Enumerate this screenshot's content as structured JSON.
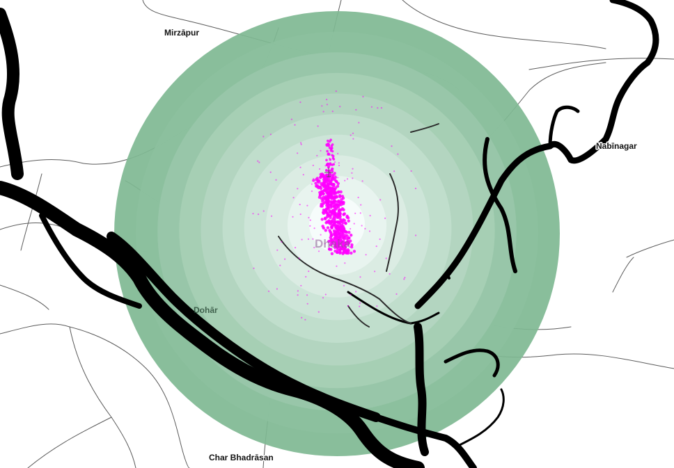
{
  "map": {
    "labels": {
      "mirzapur": "Mirzāpur",
      "nabinagar": "Nabīnagar",
      "dohar": "Dohār",
      "char_bhadrasan": "Char Bhadrāsan",
      "dhaka": "Dhaka"
    },
    "rings": {
      "count": 10,
      "outer_color": "#7fb892",
      "inner_color": "#f6fcfc"
    },
    "colors": {
      "river": "#000000",
      "road": "#555555",
      "points": "#ff00ff",
      "background": "#ffffff"
    },
    "icons": [
      "airport-icon"
    ]
  }
}
